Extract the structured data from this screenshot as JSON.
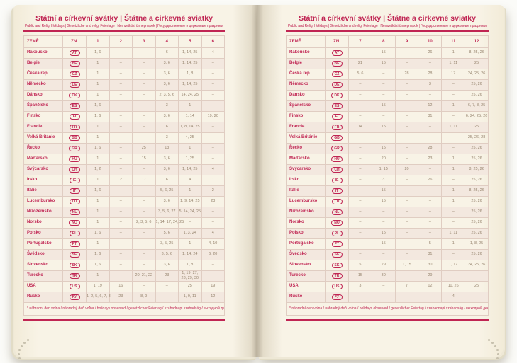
{
  "title": "Státní a církevní svátky | Štátne a cirkevné sviatky",
  "subtitle": "Public and Relig. Holidays | Gesetzliche und relig. Feiertage | Nemzetközi ünnepnapok | Государственные и церковные праздники",
  "footnote": "* náhradní den volna / náhradný deň voľna / holidays observed / gesetzlicher Feiertag / szabadnapi szabadság / выходной день",
  "colors": {
    "accent": "#c02553",
    "page_cream": "#f8f3e6",
    "row_stripe": "#f3e8df",
    "value_text": "#97856f"
  },
  "columns": {
    "country": "ZEMĚ",
    "code": "ZN."
  },
  "months_left": [
    "1",
    "2",
    "3",
    "4",
    "5",
    "6"
  ],
  "months_right": [
    "7",
    "8",
    "9",
    "10",
    "11",
    "12"
  ],
  "countries": [
    {
      "name": "Rakousko",
      "code": "AT",
      "left": [
        "1, 6",
        "–",
        "–",
        "6",
        "1, 14, 25",
        "4"
      ],
      "right": [
        "–",
        "15",
        "–",
        "26",
        "1",
        "8, 25, 26"
      ]
    },
    {
      "name": "Belgie",
      "code": "BE",
      "left": [
        "1",
        "–",
        "–",
        "3, 6",
        "1, 14, 25",
        "–"
      ],
      "right": [
        "21",
        "15",
        "–",
        "–",
        "1, 11",
        "25"
      ]
    },
    {
      "name": "Česká rep.",
      "code": "CZ",
      "left": [
        "1",
        "–",
        "–",
        "3, 6",
        "1, 8",
        "–"
      ],
      "right": [
        "5, 6",
        "–",
        "28",
        "28",
        "17",
        "24, 25, 26"
      ]
    },
    {
      "name": "Německo",
      "code": "DE",
      "left": [
        "1",
        "–",
        "–",
        "3, 6",
        "1, 14, 25",
        "–"
      ],
      "right": [
        "–",
        "–",
        "–",
        "3",
        "–",
        "25, 26"
      ]
    },
    {
      "name": "Dánsko",
      "code": "DK",
      "left": [
        "1",
        "–",
        "–",
        "2, 3, 5, 6",
        "14, 24, 25",
        "–"
      ],
      "right": [
        "–",
        "–",
        "–",
        "–",
        "–",
        "25, 26"
      ]
    },
    {
      "name": "Španělsko",
      "code": "ES",
      "left": [
        "1, 6",
        "–",
        "–",
        "3",
        "1",
        "–"
      ],
      "right": [
        "–",
        "15",
        "–",
        "12",
        "1",
        "6, 7, 8, 25"
      ]
    },
    {
      "name": "Finsko",
      "code": "FI",
      "left": [
        "1, 6",
        "–",
        "–",
        "3, 6",
        "1, 14",
        "19, 20"
      ],
      "right": [
        "–",
        "–",
        "–",
        "31",
        "–",
        "6, 24, 25, 26"
      ]
    },
    {
      "name": "Francie",
      "code": "FR",
      "left": [
        "1",
        "–",
        "–",
        "6",
        "1, 8, 14, 25",
        "–"
      ],
      "right": [
        "14",
        "15",
        "–",
        "–",
        "1, 11",
        "25"
      ]
    },
    {
      "name": "Velká Británie",
      "code": "GB",
      "left": [
        "1",
        "–",
        "–",
        "3",
        "4, 25",
        "–"
      ],
      "right": [
        "–",
        "–",
        "–",
        "–",
        "–",
        "25, 26, 28"
      ]
    },
    {
      "name": "Řecko",
      "code": "GR",
      "left": [
        "1, 6",
        "–",
        "25",
        "13",
        "1",
        "–"
      ],
      "right": [
        "–",
        "15",
        "–",
        "28",
        "–",
        "25, 26"
      ]
    },
    {
      "name": "Maďarsko",
      "code": "HU",
      "left": [
        "1",
        "–",
        "15",
        "3, 6",
        "1, 25",
        "–"
      ],
      "right": [
        "–",
        "20",
        "–",
        "23",
        "1",
        "25, 26"
      ]
    },
    {
      "name": "Švýcarsko",
      "code": "CH",
      "left": [
        "1, 2",
        "–",
        "–",
        "3, 6",
        "1, 14, 25",
        "4"
      ],
      "right": [
        "–",
        "1, 15",
        "20",
        "–",
        "1",
        "8, 25, 26"
      ]
    },
    {
      "name": "Irsko",
      "code": "IE",
      "left": [
        "1",
        "2",
        "17",
        "6",
        "4",
        "1"
      ],
      "right": [
        "–",
        "3",
        "–",
        "26",
        "–",
        "25, 26"
      ]
    },
    {
      "name": "Itálie",
      "code": "IT",
      "left": [
        "1, 6",
        "–",
        "–",
        "5, 6, 25",
        "1",
        "2"
      ],
      "right": [
        "–",
        "15",
        "–",
        "–",
        "1",
        "8, 25, 26"
      ]
    },
    {
      "name": "Lucembursko",
      "code": "LU",
      "left": [
        "1",
        "–",
        "–",
        "3, 6",
        "1, 9, 14, 25",
        "23"
      ],
      "right": [
        "–",
        "15",
        "–",
        "–",
        "1",
        "25, 26"
      ]
    },
    {
      "name": "Nizozemsko",
      "code": "NL",
      "left": [
        "1",
        "–",
        "–",
        "3, 5, 6, 27",
        "5, 14, 24, 25",
        "–"
      ],
      "right": [
        "–",
        "–",
        "–",
        "–",
        "–",
        "25, 26"
      ]
    },
    {
      "name": "Norsko",
      "code": "NO",
      "left": [
        "1",
        "–",
        "2, 3, 5, 6",
        "1, 14, 17, 24, 25",
        "–",
        "–"
      ],
      "right": [
        "–",
        "–",
        "–",
        "–",
        "–",
        "25, 26"
      ]
    },
    {
      "name": "Polsko",
      "code": "PL",
      "left": [
        "1, 6",
        "–",
        "–",
        "5, 6",
        "1, 3, 24",
        "4"
      ],
      "right": [
        "–",
        "15",
        "–",
        "–",
        "1, 11",
        "25, 26"
      ]
    },
    {
      "name": "Portugalsko",
      "code": "PT",
      "left": [
        "1",
        "–",
        "–",
        "3, 5, 25",
        "1",
        "4, 10"
      ],
      "right": [
        "–",
        "15",
        "–",
        "5",
        "1",
        "1, 8, 25"
      ]
    },
    {
      "name": "Švédsko",
      "code": "SE",
      "left": [
        "1, 6",
        "–",
        "–",
        "3, 5, 6",
        "1, 14, 24",
        "6, 20"
      ],
      "right": [
        "–",
        "–",
        "–",
        "31",
        "–",
        "25, 26"
      ]
    },
    {
      "name": "Slovensko",
      "code": "SK",
      "left": [
        "1, 6",
        "–",
        "–",
        "3, 6",
        "1, 8",
        "–"
      ],
      "right": [
        "5",
        "29",
        "1, 15",
        "30",
        "1, 17",
        "24, 25, 26"
      ]
    },
    {
      "name": "Turecko",
      "code": "TR",
      "left": [
        "1",
        "–",
        "20, 21, 22",
        "23",
        "1, 19, 27, 28, 29, 30",
        "–"
      ],
      "right": [
        "15",
        "30",
        "–",
        "29",
        "–",
        "–"
      ]
    },
    {
      "name": "USA",
      "code": "US",
      "left": [
        "1, 19",
        "16",
        "–",
        "–",
        "25",
        "19"
      ],
      "right": [
        "3",
        "–",
        "7",
        "12",
        "11, 26",
        "25"
      ]
    },
    {
      "name": "Rusko",
      "code": "РУ",
      "left": [
        "1, 2, 5, 6, 7, 8",
        "23",
        "8, 9",
        "–",
        "1, 9, 11",
        "12"
      ],
      "right": [
        "–",
        "–",
        "–",
        "–",
        "4",
        "–"
      ]
    }
  ]
}
